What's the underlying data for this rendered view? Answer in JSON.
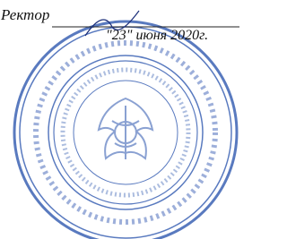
{
  "signature_block": {
    "position": "Ректор",
    "date": "\"23\" июня 2020г."
  }
}
